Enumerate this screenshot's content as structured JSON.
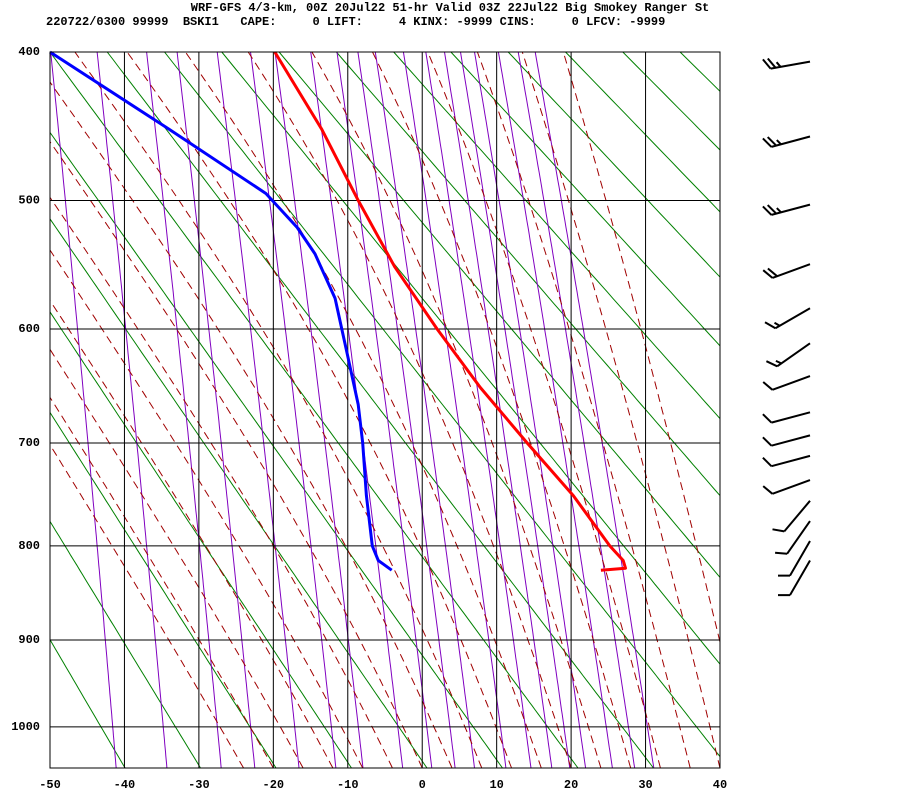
{
  "chart_data": {
    "type": "skewt",
    "title": "WRF-GFS 4/3-km, 00Z 20Jul22 51-hr Valid 03Z 22Jul22 Big Smokey Ranger St",
    "subtitle": "220722/0300 99999  BSKI1   CAPE:     0 LIFT:     4 KINX: -9999 CINS:     0 LFCV: -9999",
    "xlim": [
      -50,
      40
    ],
    "xticks": [
      -50,
      -40,
      -30,
      -20,
      -10,
      0,
      10,
      20,
      30,
      40
    ],
    "ylim": [
      400,
      1050
    ],
    "yticks": [
      400,
      500,
      600,
      700,
      800,
      900,
      1000
    ],
    "grid": true,
    "series": [
      {
        "color": "#ff0000",
        "pressure": [
          400,
          450,
          500,
          550,
          600,
          650,
          700,
          750,
          800,
          815,
          823,
          825
        ],
        "values": [
          -19.8,
          -13.5,
          -8.6,
          -3.7,
          2.0,
          7.8,
          14.1,
          20.3,
          25.2,
          27.0,
          27.3,
          24.0
        ]
      },
      {
        "color": "#0000ff",
        "pressure": [
          400,
          450,
          495,
          520,
          540,
          575,
          620,
          665,
          700,
          750,
          800,
          815,
          825
        ],
        "values": [
          -50,
          -34,
          -21,
          -16.8,
          -14.4,
          -11.7,
          -10.1,
          -8.6,
          -8.0,
          -7.5,
          -6.7,
          -5.9,
          -4.1
        ]
      }
    ],
    "wind": {
      "pressure": [
        406,
        455,
        503,
        548,
        583,
        612,
        640,
        672,
        693,
        712,
        735,
        755,
        775,
        795,
        815
      ],
      "direction": [
        260,
        255,
        255,
        250,
        240,
        235,
        250,
        255,
        255,
        255,
        250,
        220,
        215,
        210,
        210
      ],
      "speed": [
        25,
        25,
        25,
        20,
        15,
        15,
        10,
        10,
        10,
        10,
        10,
        10,
        10,
        10,
        10
      ],
      "color": "#000000"
    }
  }
}
